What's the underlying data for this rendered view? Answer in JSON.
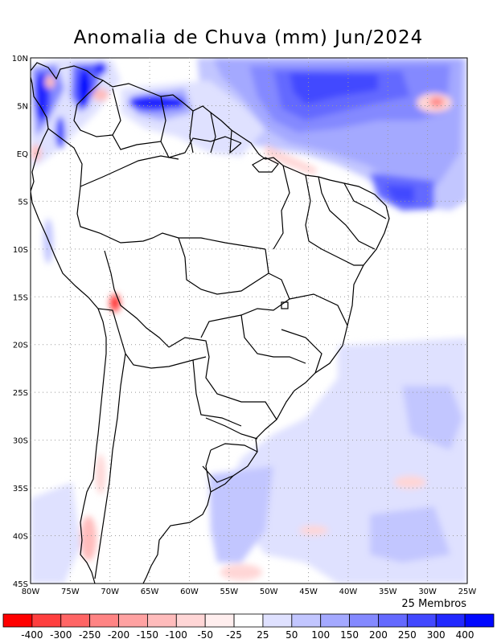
{
  "title": "Anomalia de Chuva (mm) Jun/2024",
  "members_label": "25 Membros",
  "map": {
    "lon_range": [
      -80,
      -25
    ],
    "lat_range": [
      -45,
      10
    ],
    "lon_tick_labels": [
      "80W",
      "75W",
      "70W",
      "65W",
      "60W",
      "55W",
      "50W",
      "45W",
      "40W",
      "35W",
      "30W",
      "25W"
    ],
    "lat_tick_labels": [
      "10N",
      "5N",
      "EQ",
      "5S",
      "10S",
      "15S",
      "20S",
      "25S",
      "30S",
      "35S",
      "40S",
      "45S"
    ],
    "grid": true
  },
  "legend": {
    "colors": [
      "#ff0000",
      "#ff3f3f",
      "#ff6565",
      "#ff8484",
      "#ffa2a2",
      "#ffbcbc",
      "#ffd6d6",
      "#ffeeee",
      "#ffffff",
      "#dfe1ff",
      "#c2c6ff",
      "#a4a9ff",
      "#8489ff",
      "#6469ff",
      "#4248ff",
      "#2128ff",
      "#0008ff"
    ],
    "labels": [
      "-400",
      "-300",
      "-250",
      "-200",
      "-150",
      "-100",
      "-50",
      "-25",
      "25",
      "50",
      "100",
      "150",
      "200",
      "250",
      "300",
      "400"
    ]
  }
}
